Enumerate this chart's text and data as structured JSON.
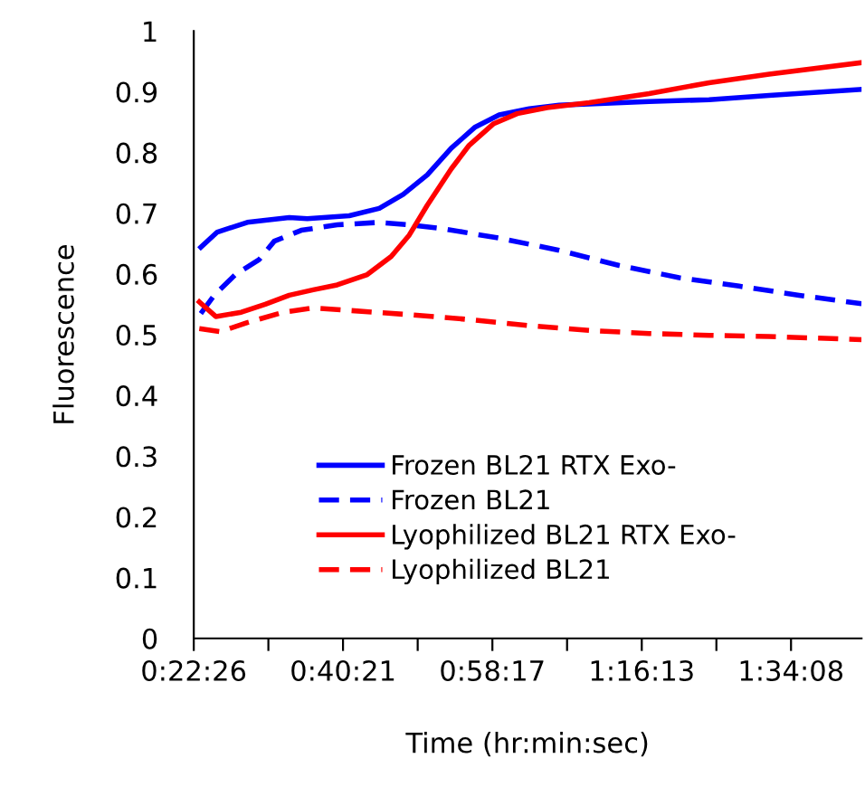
{
  "chart_data": {
    "type": "line",
    "xlabel": "Time (hr:min:sec)",
    "ylabel": "Fluorescence",
    "xlim": [
      0.37389,
      1.71
    ],
    "ylim": [
      0,
      1
    ],
    "xticks": [
      {
        "value": 0.37389,
        "label": "0:22:26"
      },
      {
        "value": 0.52319,
        "label": null
      },
      {
        "value": 0.6725,
        "label": "0:40:21"
      },
      {
        "value": 0.82194,
        "label": null
      },
      {
        "value": 0.97139,
        "label": "0:58:17"
      },
      {
        "value": 1.12083,
        "label": null
      },
      {
        "value": 1.27028,
        "label": "1:16:13"
      },
      {
        "value": 1.41958,
        "label": null
      },
      {
        "value": 1.56889,
        "label": "1:34:08"
      }
    ],
    "yticks": [
      0,
      0.1,
      0.2,
      0.3,
      0.4,
      0.5,
      0.6,
      0.7,
      0.8,
      0.9,
      1
    ],
    "grid": false,
    "legend": "bottom",
    "marker": "none",
    "series": [
      {
        "name": "Frozen BL21 RTX Exo-",
        "color": "#0000ff",
        "line_style": "solid",
        "x": [
          0.388,
          0.421,
          0.481,
          0.565,
          0.601,
          0.685,
          0.745,
          0.793,
          0.841,
          0.889,
          0.937,
          0.985,
          1.045,
          1.105,
          1.165,
          1.285,
          1.405,
          1.525,
          1.71
        ],
        "values": [
          0.644,
          0.669,
          0.685,
          0.693,
          0.691,
          0.696,
          0.708,
          0.731,
          0.763,
          0.807,
          0.842,
          0.862,
          0.872,
          0.878,
          0.88,
          0.884,
          0.887,
          0.894,
          0.904
        ]
      },
      {
        "name": "Frozen BL21",
        "color": "#0000ff",
        "line_style": "dashed",
        "x": [
          0.388,
          0.415,
          0.457,
          0.505,
          0.535,
          0.589,
          0.661,
          0.745,
          0.805,
          0.877,
          0.985,
          1.105,
          1.225,
          1.345,
          1.465,
          1.585,
          1.71
        ],
        "values": [
          0.535,
          0.565,
          0.599,
          0.624,
          0.654,
          0.672,
          0.681,
          0.685,
          0.681,
          0.674,
          0.659,
          0.639,
          0.614,
          0.594,
          0.58,
          0.565,
          0.551
        ]
      },
      {
        "name": "Lyophilized BL21 RTX Exo-",
        "color": "#ff0000",
        "line_style": "solid",
        "x": [
          0.385,
          0.418,
          0.469,
          0.517,
          0.565,
          0.613,
          0.661,
          0.721,
          0.769,
          0.805,
          0.841,
          0.889,
          0.925,
          0.973,
          1.021,
          1.081,
          1.165,
          1.285,
          1.405,
          1.525,
          1.71
        ],
        "values": [
          0.554,
          0.53,
          0.537,
          0.55,
          0.565,
          0.574,
          0.582,
          0.599,
          0.629,
          0.664,
          0.713,
          0.773,
          0.812,
          0.847,
          0.864,
          0.874,
          0.882,
          0.897,
          0.915,
          0.929,
          0.948
        ]
      },
      {
        "name": "Lyophilized BL21",
        "color": "#ff0000",
        "line_style": "dashed",
        "x": [
          0.385,
          0.427,
          0.481,
          0.553,
          0.613,
          0.685,
          0.805,
          0.925,
          1.045,
          1.165,
          1.285,
          1.405,
          1.525,
          1.71
        ],
        "values": [
          0.51,
          0.505,
          0.52,
          0.537,
          0.544,
          0.54,
          0.533,
          0.525,
          0.515,
          0.507,
          0.502,
          0.499,
          0.497,
          0.492
        ]
      }
    ]
  }
}
